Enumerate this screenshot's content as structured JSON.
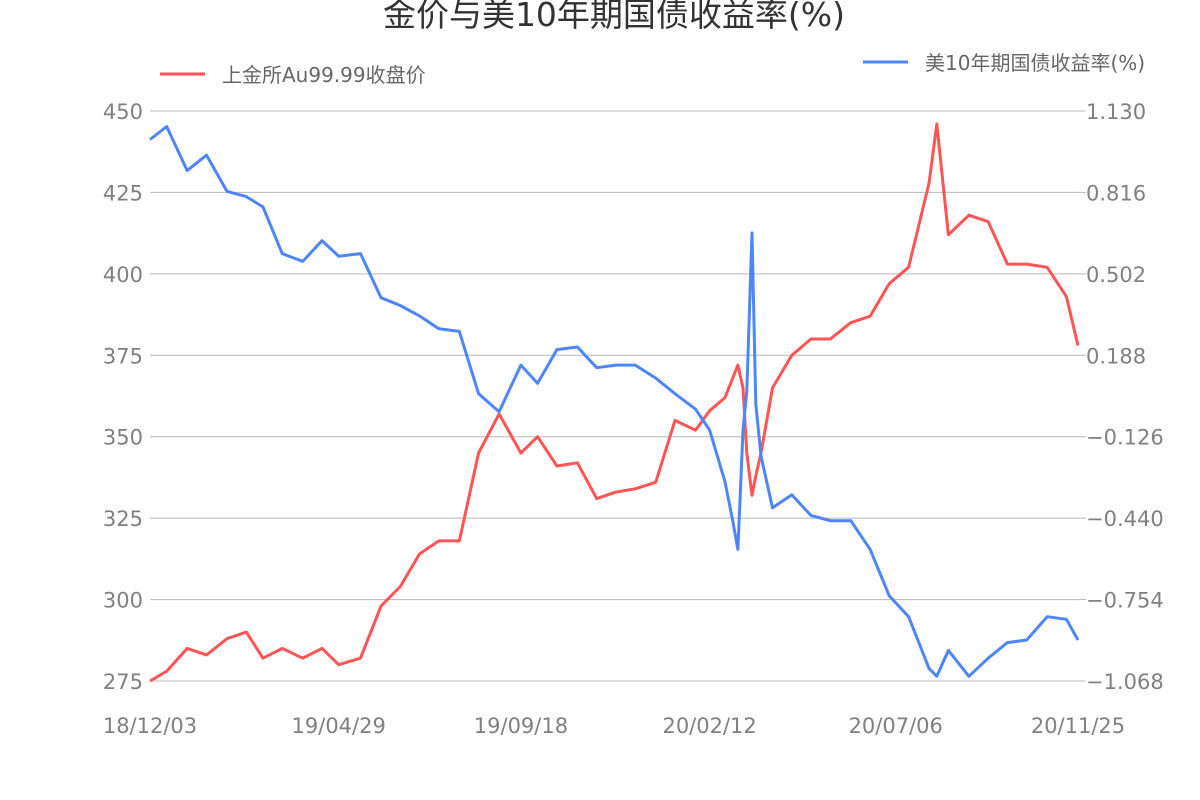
{
  "chart_data": {
    "type": "line",
    "title": "金价与美10年期国债收益率(%)",
    "x_tick_labels": [
      "18/12/03",
      "19/04/29",
      "19/09/18",
      "20/02/12",
      "20/07/06",
      "20/11/25"
    ],
    "x_tick_dates": [
      "2018-12-03",
      "2019-04-29",
      "2019-09-18",
      "2020-02-12",
      "2020-07-06",
      "2020-11-25"
    ],
    "xlim": [
      "2018-12-03",
      "2020-11-25"
    ],
    "y_left": {
      "lim": [
        275,
        450
      ],
      "ticks": [
        "450",
        "425",
        "400",
        "375",
        "350",
        "325",
        "300",
        "275"
      ]
    },
    "y_right": {
      "lim": [
        -1.068,
        1.13
      ],
      "ticks": [
        "1.130",
        "0.816",
        "0.502",
        "0.188",
        "−0.126",
        "−0.440",
        "−0.754",
        "−1.068"
      ]
    },
    "grid": true,
    "legend_placement": "top",
    "x": [
      "2018-12-03",
      "2018-12-16",
      "2019-01-01",
      "2019-01-16",
      "2019-02-01",
      "2019-02-16",
      "2019-03-01",
      "2019-03-16",
      "2019-04-01",
      "2019-04-16",
      "2019-04-29",
      "2019-05-16",
      "2019-06-01",
      "2019-06-16",
      "2019-07-01",
      "2019-07-16",
      "2019-08-01",
      "2019-08-16",
      "2019-09-01",
      "2019-09-18",
      "2019-10-01",
      "2019-10-16",
      "2019-11-01",
      "2019-11-16",
      "2019-12-01",
      "2019-12-16",
      "2020-01-01",
      "2020-01-16",
      "2020-02-01",
      "2020-02-12",
      "2020-02-24",
      "2020-03-01",
      "2020-03-05",
      "2020-03-09",
      "2020-03-12",
      "2020-03-16",
      "2020-03-19",
      "2020-03-23",
      "2020-04-01",
      "2020-04-16",
      "2020-05-01",
      "2020-05-16",
      "2020-06-01",
      "2020-06-16",
      "2020-07-01",
      "2020-07-16",
      "2020-08-01",
      "2020-08-07",
      "2020-08-16",
      "2020-09-01",
      "2020-09-16",
      "2020-10-01",
      "2020-10-16",
      "2020-11-01",
      "2020-11-16",
      "2020-11-25"
    ],
    "series": [
      {
        "name": "上金所Au99.99收盘价",
        "axis": "left",
        "color": "#ff5555",
        "values": [
          275,
          278,
          285,
          283,
          288,
          290,
          282,
          285,
          282,
          285,
          280,
          282,
          298,
          304,
          314,
          318,
          318,
          345,
          357,
          345,
          350,
          341,
          342,
          331,
          333,
          334,
          336,
          355,
          352,
          358,
          362,
          368,
          372,
          365,
          345,
          332,
          338,
          345,
          365,
          375,
          380,
          380,
          385,
          387,
          397,
          402,
          428,
          446,
          412,
          418,
          416,
          403,
          403,
          402,
          393,
          378
        ]
      },
      {
        "name": "美10年期国债收益率(%)",
        "axis": "right",
        "color": "#4f86f7",
        "values": [
          1.02,
          1.07,
          0.9,
          0.96,
          0.82,
          0.8,
          0.76,
          0.58,
          0.55,
          0.63,
          0.57,
          0.58,
          0.41,
          0.38,
          0.34,
          0.29,
          0.28,
          0.04,
          -0.03,
          0.15,
          0.08,
          0.21,
          0.22,
          0.14,
          0.15,
          0.15,
          0.1,
          0.04,
          -0.02,
          -0.1,
          -0.3,
          -0.45,
          -0.56,
          -0.1,
          0.05,
          0.66,
          0.0,
          -0.2,
          -0.4,
          -0.35,
          -0.43,
          -0.45,
          -0.45,
          -0.56,
          -0.74,
          -0.82,
          -1.02,
          -1.05,
          -0.95,
          -1.05,
          -0.98,
          -0.92,
          -0.91,
          -0.82,
          -0.83,
          -0.91
        ]
      }
    ]
  }
}
